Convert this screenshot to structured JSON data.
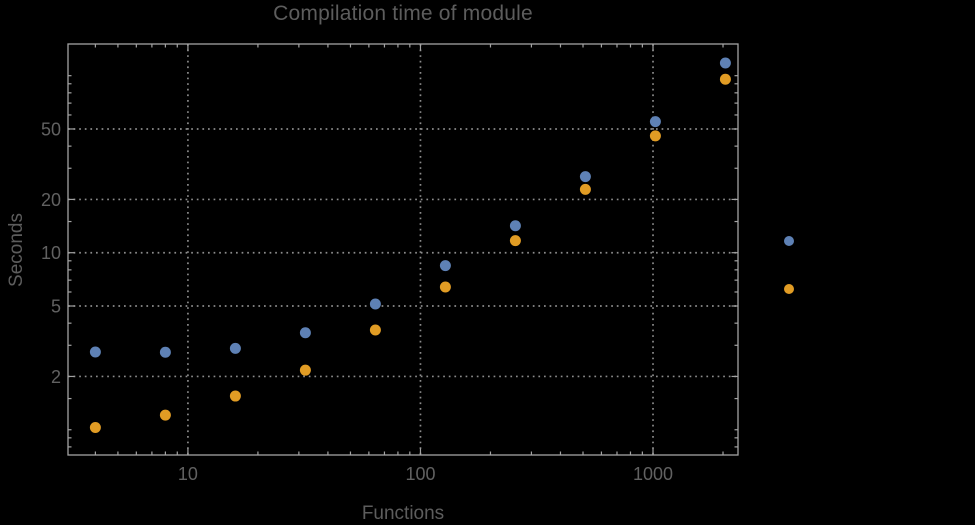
{
  "window": {
    "background_color": "#000000"
  },
  "chart_data": {
    "type": "scatter",
    "title": "Compilation time of module",
    "xlabel": "Functions",
    "ylabel": "Seconds",
    "x_scale": "log",
    "y_scale": "log",
    "xlim": [
      3.05,
      2320
    ],
    "ylim": [
      0.72,
      151
    ],
    "grid": "dotted-major",
    "x": [
      4,
      8,
      16,
      32,
      64,
      128,
      256,
      512,
      1024,
      2048
    ],
    "series": [
      {
        "name": "series-1-blue",
        "color": "#5e81b5",
        "values": [
          2.75,
          2.74,
          2.88,
          3.53,
          5.13,
          8.45,
          14.2,
          26.9,
          55.0,
          118.0
        ]
      },
      {
        "name": "series-2-orange",
        "color": "#e19c24",
        "values": [
          1.03,
          1.21,
          1.55,
          2.17,
          3.66,
          6.4,
          11.7,
          22.8,
          45.7,
          95.5
        ]
      }
    ],
    "x_ticks": {
      "major": [
        10,
        100,
        1000
      ],
      "labels": [
        "10",
        "100",
        "1000"
      ],
      "minor": [
        4,
        5,
        6,
        7,
        8,
        9,
        20,
        30,
        40,
        50,
        60,
        70,
        80,
        90,
        200,
        300,
        400,
        500,
        600,
        700,
        800,
        900,
        2000
      ]
    },
    "y_ticks": {
      "major": [
        2,
        5,
        10,
        20,
        50
      ],
      "labels": [
        "2",
        "5",
        "10",
        "20",
        "50"
      ],
      "minor": [
        0.8,
        0.9,
        1,
        1.5,
        3,
        4,
        6,
        7,
        8,
        9,
        15,
        30,
        40,
        60,
        70,
        80,
        90,
        100
      ]
    },
    "legend": {
      "position": "right-outside",
      "labels_visible": false,
      "marker_colors": [
        "#5e81b5",
        "#e19c24"
      ]
    }
  },
  "colors": {
    "frame": "#a3a3a3",
    "grid": "#8c8c8c",
    "text": "#5d5d5d",
    "tick_text": "#616161"
  }
}
